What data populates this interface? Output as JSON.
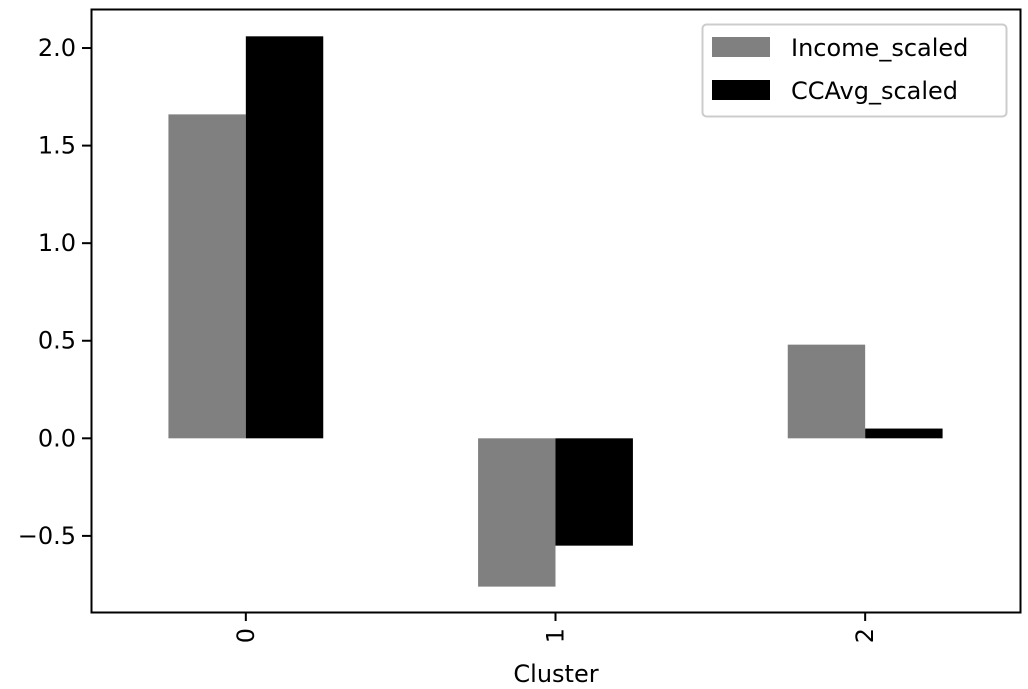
{
  "chart_data": {
    "type": "bar",
    "categories": [
      "0",
      "1",
      "2"
    ],
    "series": [
      {
        "name": "Income_scaled",
        "color": "#808080",
        "values": [
          1.66,
          -0.76,
          0.48
        ]
      },
      {
        "name": "CCAvg_scaled",
        "color": "#000000",
        "values": [
          2.06,
          -0.55,
          0.05
        ]
      }
    ],
    "title": "",
    "xlabel": "Cluster",
    "ylabel": "",
    "ylim": [
      -0.89,
      2.2
    ],
    "yticks": [
      -0.5,
      0.0,
      0.5,
      1.0,
      1.5,
      2.0
    ],
    "ytick_labels": [
      "−0.5",
      "0.0",
      "0.5",
      "1.0",
      "1.5",
      "2.0"
    ],
    "xtick_rotation": 90,
    "grid": false,
    "legend": "top-right"
  }
}
